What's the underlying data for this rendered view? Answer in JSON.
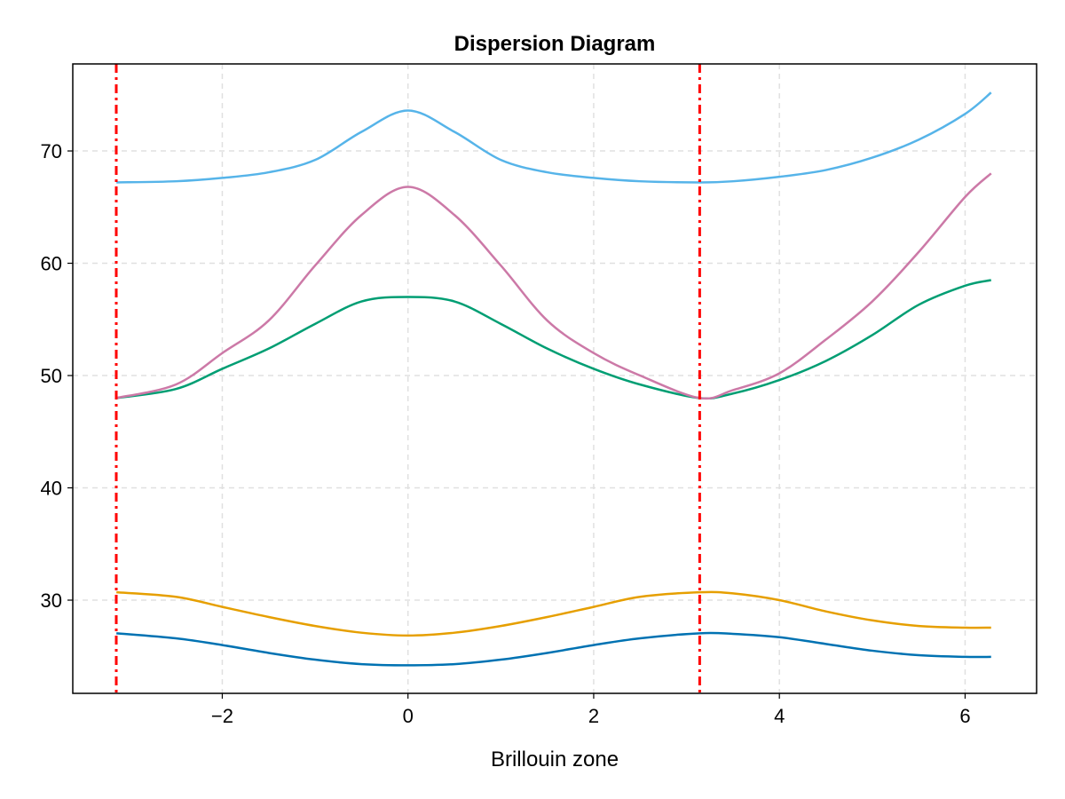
{
  "chart_data": {
    "type": "line",
    "title": "Dispersion Diagram",
    "xlabel": "Brillouin zone",
    "ylabel": "",
    "xlim": [
      -3.61,
      6.77
    ],
    "ylim": [
      21.7,
      77.75
    ],
    "grid": true,
    "x_ticks": [
      -2,
      0,
      2,
      4,
      6
    ],
    "x_tick_labels": [
      "−2",
      "0",
      "2",
      "4",
      "6"
    ],
    "y_ticks": [
      30,
      40,
      50,
      60,
      70
    ],
    "y_tick_labels": [
      "30",
      "40",
      "50",
      "60",
      "70"
    ],
    "x": [
      -3.14,
      -2.5,
      -2,
      -1.5,
      -1,
      -0.5,
      0,
      0.5,
      1,
      1.5,
      2,
      2.5,
      3.14,
      3.5,
      4,
      4.5,
      5,
      5.5,
      6,
      6.28
    ],
    "series": [
      {
        "color": "#0072b2",
        "values": [
          27.05,
          26.6,
          26.0,
          25.3,
          24.7,
          24.3,
          24.2,
          24.3,
          24.7,
          25.3,
          26.0,
          26.6,
          27.05,
          27.0,
          26.7,
          26.1,
          25.5,
          25.1,
          24.95,
          24.95
        ]
      },
      {
        "color": "#e69f00",
        "values": [
          30.7,
          30.3,
          29.4,
          28.5,
          27.7,
          27.1,
          26.85,
          27.1,
          27.7,
          28.5,
          29.4,
          30.3,
          30.7,
          30.6,
          30.0,
          29.0,
          28.2,
          27.7,
          27.55,
          27.55
        ]
      },
      {
        "color": "#009e73",
        "values": [
          48.0,
          48.8,
          50.6,
          52.4,
          54.6,
          56.6,
          57.0,
          56.6,
          54.6,
          52.4,
          50.6,
          49.2,
          48.0,
          48.4,
          49.6,
          51.3,
          53.6,
          56.3,
          58.0,
          58.5
        ]
      },
      {
        "color": "#cc79a7",
        "values": [
          48.0,
          49.2,
          52.0,
          54.9,
          59.8,
          64.3,
          66.8,
          64.3,
          59.8,
          54.9,
          52.0,
          50.0,
          48.0,
          48.7,
          50.2,
          53.2,
          56.6,
          61.0,
          65.9,
          68.0
        ]
      },
      {
        "color": "#56b4e9",
        "values": [
          67.2,
          67.3,
          67.6,
          68.1,
          69.2,
          71.7,
          73.6,
          71.7,
          69.2,
          68.1,
          67.6,
          67.3,
          67.2,
          67.3,
          67.7,
          68.3,
          69.4,
          71.0,
          73.3,
          75.2
        ]
      }
    ],
    "vlines": {
      "x": [
        -3.14159,
        3.14159
      ],
      "color": "#ff0000",
      "style": "dash-dot"
    }
  }
}
